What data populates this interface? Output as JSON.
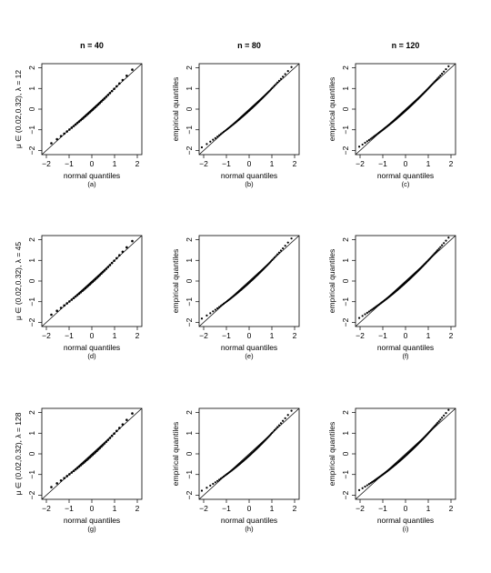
{
  "column_titles": [
    "n = 40",
    "n = 80",
    "n = 120"
  ],
  "row_labels": [
    "μ ∈ (0.02,0.32), λ = 12",
    "μ ∈ (0.02,0.32), λ = 45",
    "μ ∈ (0.02,0.32), λ = 128"
  ],
  "chart_data": {
    "type": "scatter",
    "layout": "3x3 grid of normal Q-Q plots",
    "xlabel": "normal quantiles",
    "ylabel": "empirical quantiles",
    "xlim": [
      -2.2,
      2.2
    ],
    "ylim": [
      -2.2,
      2.2
    ],
    "xticks": [
      -2,
      -1,
      0,
      1,
      2
    ],
    "yticks": [
      -2,
      -1,
      0,
      1,
      2
    ],
    "reference_line": "y = x",
    "panels": [
      {
        "id": "(a)",
        "row": 0,
        "col": 0,
        "n": 40,
        "curvature": 0.06
      },
      {
        "id": "(b)",
        "row": 0,
        "col": 1,
        "n": 80,
        "curvature": 0.07
      },
      {
        "id": "(c)",
        "row": 0,
        "col": 2,
        "n": 120,
        "curvature": 0.07
      },
      {
        "id": "(d)",
        "row": 1,
        "col": 0,
        "n": 40,
        "curvature": 0.07
      },
      {
        "id": "(e)",
        "row": 1,
        "col": 1,
        "n": 80,
        "curvature": 0.08
      },
      {
        "id": "(f)",
        "row": 1,
        "col": 2,
        "n": 120,
        "curvature": 0.08
      },
      {
        "id": "(g)",
        "row": 2,
        "col": 0,
        "n": 40,
        "curvature": 0.08
      },
      {
        "id": "(h)",
        "row": 2,
        "col": 1,
        "n": 80,
        "curvature": 0.09
      },
      {
        "id": "(i)",
        "row": 2,
        "col": 2,
        "n": 120,
        "curvature": 0.09
      }
    ]
  }
}
